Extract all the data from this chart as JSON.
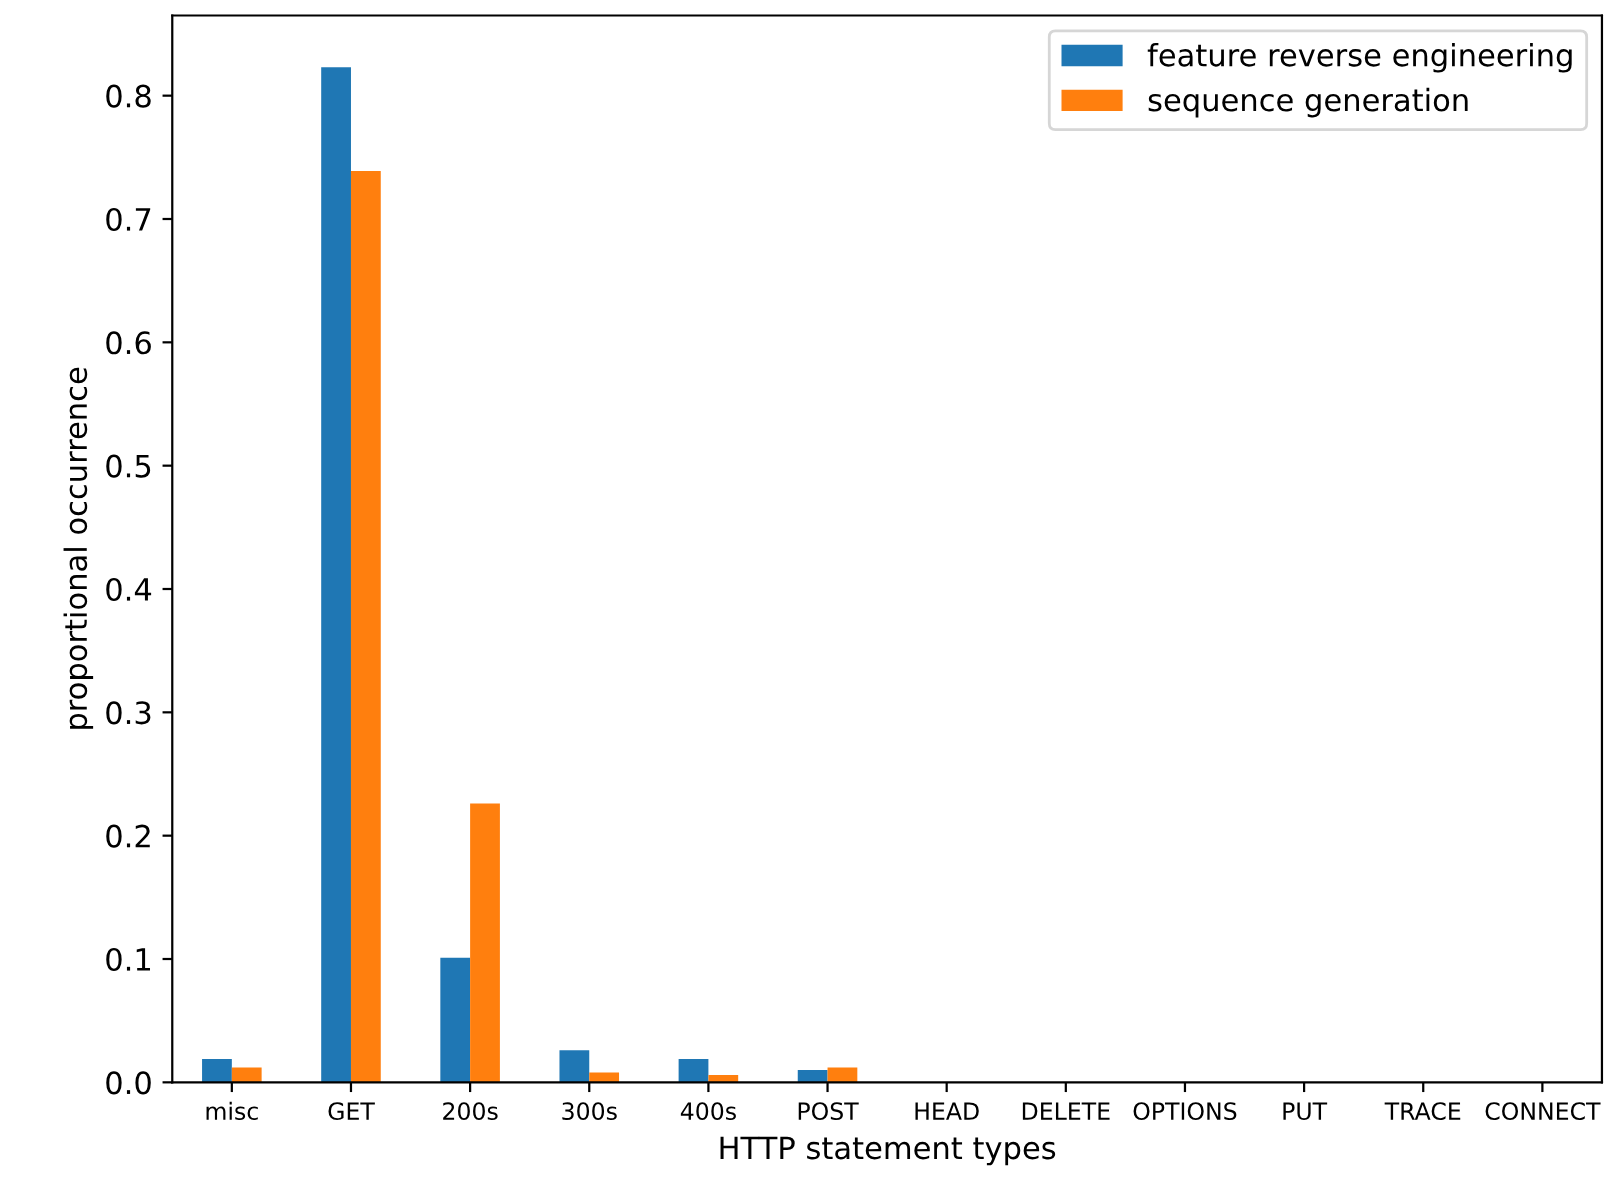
{
  "chart_data": {
    "type": "bar",
    "xlabel": "HTTP statement types",
    "ylabel": "proportional occurrence",
    "categories": [
      "misc",
      "GET",
      "200s",
      "300s",
      "400s",
      "POST",
      "HEAD",
      "DELETE",
      "OPTIONS",
      "PUT",
      "TRACE",
      "CONNECT"
    ],
    "series": [
      {
        "name": "feature reverse engineering",
        "color": "#1f77b4",
        "values": [
          0.019,
          0.823,
          0.101,
          0.026,
          0.019,
          0.01,
          0,
          0,
          0,
          0,
          0,
          0
        ]
      },
      {
        "name": "sequence generation",
        "color": "#ff7f0e",
        "values": [
          0.012,
          0.739,
          0.226,
          0.008,
          0.006,
          0.012,
          0,
          0,
          0,
          0,
          0,
          0
        ]
      }
    ],
    "ylim": [
      0,
      0.865
    ],
    "yticks": [
      {
        "value": 0,
        "label": "0.0"
      },
      0.1,
      0.2,
      0.3,
      0.4,
      0.5,
      0.6,
      0.7,
      0.8
    ],
    "grid": false,
    "legend": "top right"
  }
}
